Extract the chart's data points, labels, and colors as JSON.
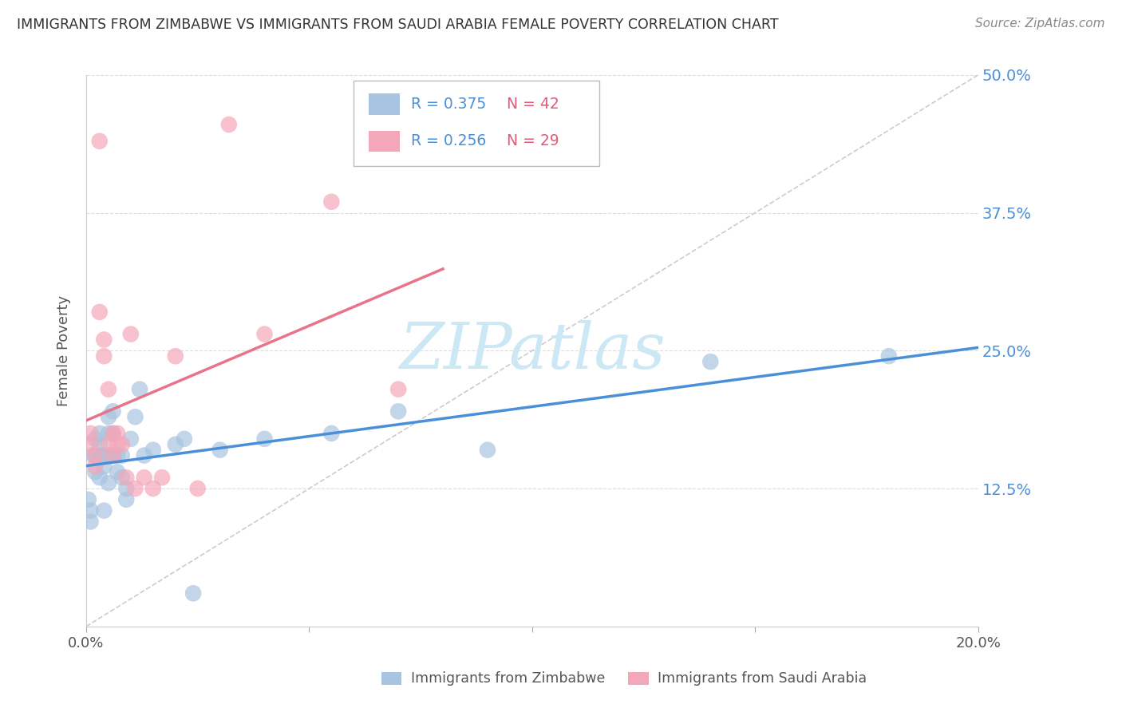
{
  "title": "IMMIGRANTS FROM ZIMBABWE VS IMMIGRANTS FROM SAUDI ARABIA FEMALE POVERTY CORRELATION CHART",
  "source": "Source: ZipAtlas.com",
  "ylabel": "Female Poverty",
  "xlim": [
    0.0,
    0.2
  ],
  "ylim": [
    0.0,
    0.5
  ],
  "xticks": [
    0.0,
    0.05,
    0.1,
    0.15,
    0.2
  ],
  "xtick_labels": [
    "0.0%",
    "",
    "",
    "",
    "20.0%"
  ],
  "yticks": [
    0.0,
    0.125,
    0.25,
    0.375,
    0.5
  ],
  "ytick_labels": [
    "",
    "12.5%",
    "25.0%",
    "37.5%",
    "50.0%"
  ],
  "legend_R_color": "#4a90d9",
  "legend_N_color": "#e05c78",
  "watermark": "ZIPatlas",
  "watermark_color": "#cde8f5",
  "background_color": "#ffffff",
  "grid_color": "#dddddd",
  "ref_line_color": "#cccccc",
  "zimbabwe_line_color": "#4a90d9",
  "saudi_line_color": "#e8748a",
  "zimbabwe_marker_color": "#a8c4e0",
  "saudi_marker_color": "#f4a7b9",
  "zimbabwe_x": [
    0.0005,
    0.001,
    0.001,
    0.0015,
    0.002,
    0.002,
    0.002,
    0.003,
    0.003,
    0.003,
    0.003,
    0.004,
    0.004,
    0.004,
    0.005,
    0.005,
    0.005,
    0.005,
    0.006,
    0.006,
    0.006,
    0.007,
    0.007,
    0.008,
    0.008,
    0.009,
    0.009,
    0.01,
    0.011,
    0.012,
    0.013,
    0.015,
    0.02,
    0.022,
    0.024,
    0.03,
    0.04,
    0.055,
    0.07,
    0.09,
    0.14,
    0.18
  ],
  "zimbabwe_y": [
    0.115,
    0.105,
    0.095,
    0.155,
    0.17,
    0.155,
    0.14,
    0.175,
    0.165,
    0.155,
    0.135,
    0.155,
    0.145,
    0.105,
    0.19,
    0.175,
    0.155,
    0.13,
    0.195,
    0.175,
    0.155,
    0.155,
    0.14,
    0.155,
    0.135,
    0.125,
    0.115,
    0.17,
    0.19,
    0.215,
    0.155,
    0.16,
    0.165,
    0.17,
    0.03,
    0.16,
    0.17,
    0.175,
    0.195,
    0.16,
    0.24,
    0.245
  ],
  "saudi_x": [
    0.001,
    0.001,
    0.002,
    0.002,
    0.003,
    0.003,
    0.004,
    0.004,
    0.005,
    0.005,
    0.006,
    0.006,
    0.007,
    0.007,
    0.008,
    0.009,
    0.01,
    0.011,
    0.013,
    0.015,
    0.017,
    0.02,
    0.025,
    0.032,
    0.04,
    0.055,
    0.07
  ],
  "saudi_y": [
    0.175,
    0.165,
    0.155,
    0.145,
    0.44,
    0.285,
    0.26,
    0.245,
    0.215,
    0.165,
    0.175,
    0.155,
    0.175,
    0.165,
    0.165,
    0.135,
    0.265,
    0.125,
    0.135,
    0.125,
    0.135,
    0.245,
    0.125,
    0.455,
    0.265,
    0.385,
    0.215
  ]
}
